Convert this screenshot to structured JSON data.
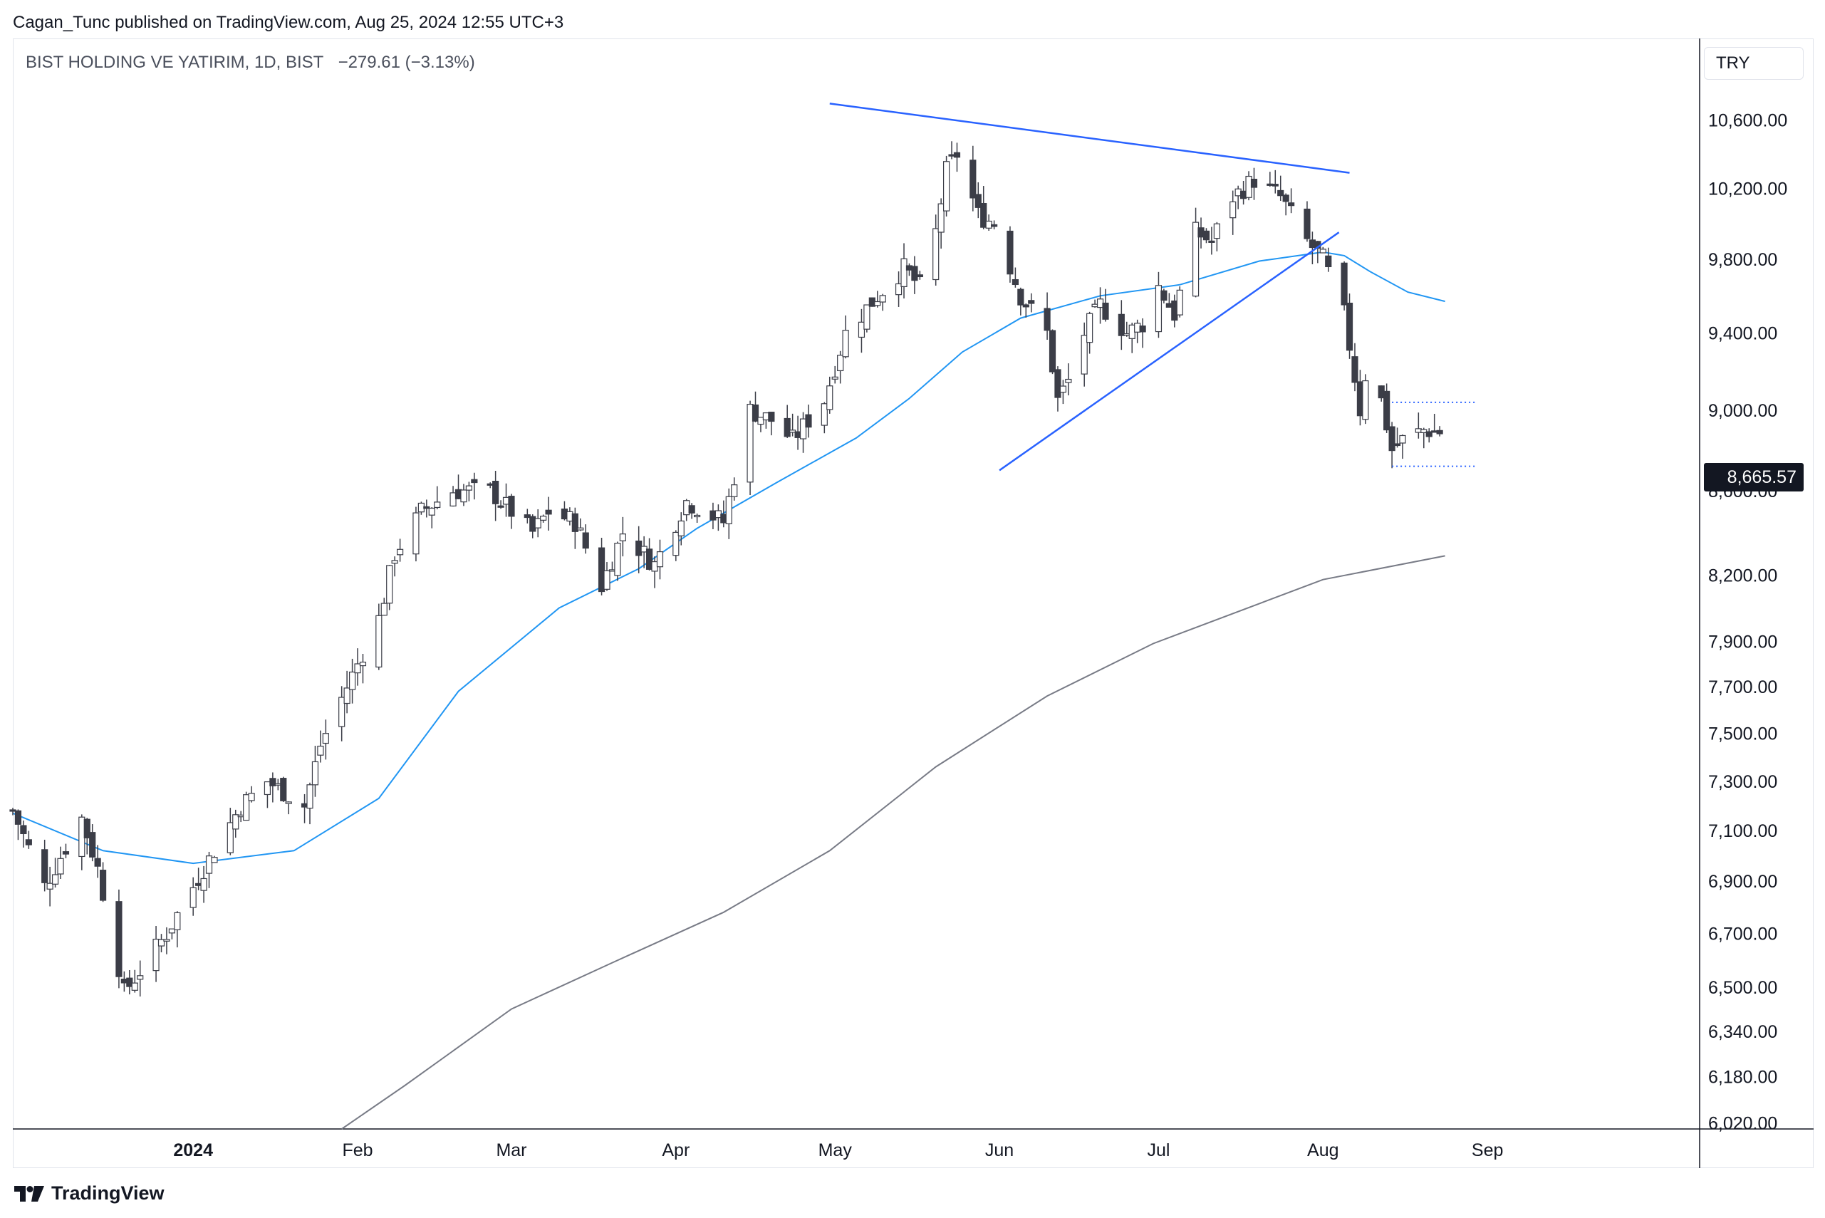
{
  "header": {
    "publisher_line": "Cagan_Tunc published on TradingView.com, Aug 25, 2024 12:55 UTC+3"
  },
  "legend": {
    "symbol_line": "BIST HOLDING VE YATIRIM, 1D, BIST",
    "change": "−279.61 (−3.13%)"
  },
  "currency_button": "TRY",
  "footer": {
    "brand": "TradingView",
    "logo_icon": "tradingview-logo-icon"
  },
  "colors": {
    "up_candle_fill": "#ffffff",
    "down_candle_fill": "#3b3d47",
    "candle_outline": "#3b3d47",
    "ma_fast": "#2196f3",
    "ma_slow": "#787b86",
    "trendline": "#2962ff",
    "box_dotted": "#2962ff",
    "last_price_bg": "#131722"
  },
  "chart_data": {
    "type": "candlestick",
    "title": "BIST HOLDING VE YATIRIM, 1D, BIST",
    "currency": "TRY",
    "last_price": "8,665.57",
    "last_price_value": 8665.57,
    "y_scale": "log",
    "y_range": [
      6000,
      11100
    ],
    "y_ticks": [
      {
        "value": 10600,
        "label": "10,600.00"
      },
      {
        "value": 10200,
        "label": "10,200.00"
      },
      {
        "value": 9800,
        "label": "9,800.00"
      },
      {
        "value": 9400,
        "label": "9,400.00"
      },
      {
        "value": 9000,
        "label": "9,000.00"
      },
      {
        "value": 8600,
        "label": "8,600.00"
      },
      {
        "value": 8200,
        "label": "8,200.00"
      },
      {
        "value": 7900,
        "label": "7,900.00"
      },
      {
        "value": 7700,
        "label": "7,700.00"
      },
      {
        "value": 7500,
        "label": "7,500.00"
      },
      {
        "value": 7300,
        "label": "7,300.00"
      },
      {
        "value": 7100,
        "label": "7,100.00"
      },
      {
        "value": 6900,
        "label": "6,900.00"
      },
      {
        "value": 6700,
        "label": "6,700.00"
      },
      {
        "value": 6500,
        "label": "6,500.00"
      },
      {
        "value": 6340,
        "label": "6,340.00"
      },
      {
        "value": 6180,
        "label": "6,180.00"
      },
      {
        "value": 6020,
        "label": "6,020.00"
      }
    ],
    "x_ticks": [
      {
        "date": "2024-01-01",
        "label": "2024",
        "bold": true
      },
      {
        "date": "2024-02-01",
        "label": "Feb"
      },
      {
        "date": "2024-03-01",
        "label": "Mar"
      },
      {
        "date": "2024-04-01",
        "label": "Apr"
      },
      {
        "date": "2024-05-01",
        "label": "May"
      },
      {
        "date": "2024-06-01",
        "label": "Jun"
      },
      {
        "date": "2024-07-01",
        "label": "Jul"
      },
      {
        "date": "2024-08-01",
        "label": "Aug"
      },
      {
        "date": "2024-09-01",
        "label": "Sep"
      }
    ],
    "x_range": [
      "2023-11-28",
      "2024-10-11"
    ],
    "waypoints": [
      [
        "2023-11-28",
        7180
      ],
      [
        "2023-12-04",
        6880
      ],
      [
        "2023-12-11",
        7150
      ],
      [
        "2023-12-14",
        6950
      ],
      [
        "2023-12-19",
        6480
      ],
      [
        "2023-12-22",
        6560
      ],
      [
        "2023-12-27",
        6700
      ],
      [
        "2024-01-03",
        6950
      ],
      [
        "2024-01-10",
        7200
      ],
      [
        "2024-01-15",
        7300
      ],
      [
        "2024-01-22",
        7200
      ],
      [
        "2024-01-25",
        7450
      ],
      [
        "2024-01-30",
        7700
      ],
      [
        "2024-02-05",
        8000
      ],
      [
        "2024-02-08",
        8300
      ],
      [
        "2024-02-13",
        8500
      ],
      [
        "2024-02-19",
        8600
      ],
      [
        "2024-02-26",
        8600
      ],
      [
        "2024-03-05",
        8400
      ],
      [
        "2024-03-08",
        8500
      ],
      [
        "2024-03-13",
        8450
      ],
      [
        "2024-03-18",
        8150
      ],
      [
        "2024-03-22",
        8400
      ],
      [
        "2024-03-28",
        8250
      ],
      [
        "2024-04-03",
        8550
      ],
      [
        "2024-04-10",
        8450
      ],
      [
        "2024-04-15",
        9000
      ],
      [
        "2024-04-19",
        8950
      ],
      [
        "2024-04-23",
        8850
      ],
      [
        "2024-04-29",
        9050
      ],
      [
        "2024-05-03",
        9400
      ],
      [
        "2024-05-09",
        9600
      ],
      [
        "2024-05-14",
        9750
      ],
      [
        "2024-05-17",
        9650
      ],
      [
        "2024-05-20",
        9950
      ],
      [
        "2024-05-22",
        10300
      ],
      [
        "2024-05-24",
        10400
      ],
      [
        "2024-05-28",
        10050
      ],
      [
        "2024-05-31",
        10000
      ],
      [
        "2024-06-05",
        9600
      ],
      [
        "2024-06-10",
        9400
      ],
      [
        "2024-06-12",
        9050
      ],
      [
        "2024-06-14",
        9150
      ],
      [
        "2024-06-17",
        9400
      ],
      [
        "2024-06-20",
        9550
      ],
      [
        "2024-06-25",
        9400
      ],
      [
        "2024-06-28",
        9450
      ],
      [
        "2024-07-01",
        9650
      ],
      [
        "2024-07-04",
        9500
      ],
      [
        "2024-07-08",
        9950
      ],
      [
        "2024-07-11",
        9900
      ],
      [
        "2024-07-15",
        10150
      ],
      [
        "2024-07-19",
        10250
      ],
      [
        "2024-07-24",
        10150
      ],
      [
        "2024-07-29",
        9900
      ],
      [
        "2024-08-01",
        9800
      ],
      [
        "2024-08-05",
        9500
      ],
      [
        "2024-08-08",
        9000
      ],
      [
        "2024-08-09",
        9180
      ],
      [
        "2024-08-12",
        9050
      ],
      [
        "2024-08-14",
        8800
      ],
      [
        "2024-08-16",
        8850
      ],
      [
        "2024-08-20",
        8900
      ],
      [
        "2024-08-23",
        8890
      ],
      [
        "2024-08-24",
        8665.57
      ]
    ],
    "series": [
      {
        "name": "",
        "type": "moving-average",
        "color": "#2196f3",
        "points": [
          [
            "2023-11-28",
            7170
          ],
          [
            "2023-12-15",
            7020
          ],
          [
            "2024-01-01",
            6970
          ],
          [
            "2024-01-20",
            7020
          ],
          [
            "2024-02-05",
            7230
          ],
          [
            "2024-02-20",
            7680
          ],
          [
            "2024-03-10",
            8050
          ],
          [
            "2024-03-25",
            8230
          ],
          [
            "2024-04-05",
            8420
          ],
          [
            "2024-04-20",
            8640
          ],
          [
            "2024-05-05",
            8860
          ],
          [
            "2024-05-15",
            9060
          ],
          [
            "2024-05-25",
            9300
          ],
          [
            "2024-06-05",
            9480
          ],
          [
            "2024-06-20",
            9600
          ],
          [
            "2024-07-05",
            9660
          ],
          [
            "2024-07-20",
            9790
          ],
          [
            "2024-08-01",
            9840
          ],
          [
            "2024-08-05",
            9820
          ],
          [
            "2024-08-10",
            9730
          ],
          [
            "2024-08-17",
            9620
          ],
          [
            "2024-08-24",
            9570
          ]
        ]
      },
      {
        "name": "",
        "type": "moving-average",
        "color": "#787b86",
        "points": [
          [
            "2024-01-29",
            6000
          ],
          [
            "2024-02-10",
            6150
          ],
          [
            "2024-03-01",
            6420
          ],
          [
            "2024-03-20",
            6590
          ],
          [
            "2024-04-10",
            6780
          ],
          [
            "2024-04-30",
            7020
          ],
          [
            "2024-05-20",
            7360
          ],
          [
            "2024-06-10",
            7660
          ],
          [
            "2024-06-30",
            7890
          ],
          [
            "2024-07-20",
            8070
          ],
          [
            "2024-08-01",
            8180
          ],
          [
            "2024-08-24",
            8290
          ]
        ]
      }
    ],
    "drawings": [
      {
        "type": "trendline",
        "name": "upper-resistance",
        "from": [
          "2024-04-30",
          10700
        ],
        "to": [
          "2024-08-06",
          10290
        ]
      },
      {
        "type": "trendline",
        "name": "lower-support",
        "from": [
          "2024-06-01",
          8700
        ],
        "to": [
          "2024-08-04",
          9950
        ]
      },
      {
        "type": "dotted-range",
        "name": "consolidation-box",
        "from_date": "2024-08-14",
        "to_date": "2024-08-30",
        "top": 9040,
        "bottom": 8720
      }
    ]
  }
}
